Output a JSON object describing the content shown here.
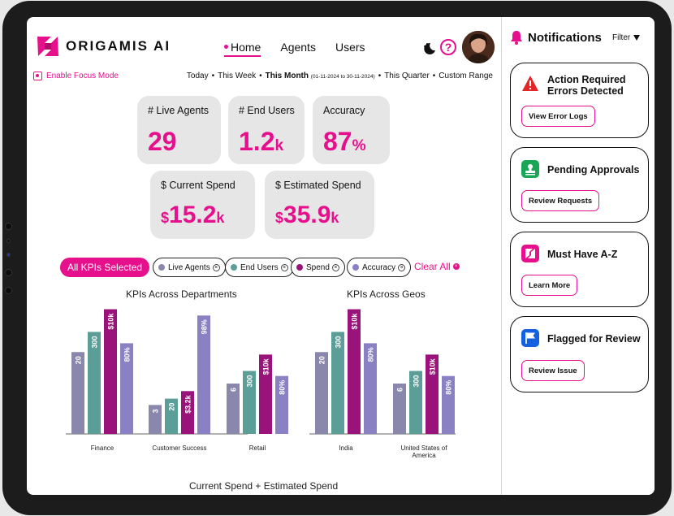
{
  "app": {
    "brand": "ORIGAMIS AI",
    "accent_color": "#e60f8c"
  },
  "nav": {
    "items": [
      {
        "label": "Home",
        "active": true
      },
      {
        "label": "Agents",
        "active": false
      },
      {
        "label": "Users",
        "active": false
      }
    ]
  },
  "header_icons": [
    "theme-toggle-icon",
    "help-icon",
    "avatar"
  ],
  "help_glyph": "?",
  "focus_mode": {
    "label": "Enable Focus Mode"
  },
  "time_ranges": {
    "items": [
      {
        "label": "Today",
        "selected": false
      },
      {
        "label": "This Week",
        "selected": false
      },
      {
        "label": "This Month",
        "selected": true,
        "sub": "(01-11-2024 to 30-11-2024)"
      },
      {
        "label": "This Quarter",
        "selected": false
      },
      {
        "label": "Custom Range",
        "selected": false
      }
    ],
    "separator": "•"
  },
  "kpis": {
    "live_agents": {
      "label": "# Live Agents",
      "value": "29",
      "suffix": ""
    },
    "end_users": {
      "label": "# End Users",
      "value": "1.2",
      "suffix": "k"
    },
    "accuracy": {
      "label": "Accuracy",
      "value": "87",
      "suffix": "%"
    },
    "current_spend": {
      "label": "$ Current Spend",
      "prefix": "$",
      "value": "15.2",
      "suffix": "k"
    },
    "estimated_spend": {
      "label": "$ Estimated Spend",
      "prefix": "$",
      "value": "35.9",
      "suffix": "k"
    }
  },
  "filters": {
    "all_label": "All KPIs Selected",
    "chips": [
      {
        "label": "Live Agents",
        "color": "#8a87ad"
      },
      {
        "label": "End Users",
        "color": "#5a9e97"
      },
      {
        "label": "Spend",
        "color": "#9a137b"
      },
      {
        "label": "Accuracy",
        "color": "#8a80c4"
      }
    ],
    "clear_label": "Clear All",
    "remove_glyph": "×"
  },
  "chart_data": [
    {
      "type": "bar",
      "title": "KPIs Across Departments",
      "categories": [
        "Finance",
        "Customer Success",
        "Retail"
      ],
      "series": [
        {
          "name": "Live Agents",
          "color": "#8a87ad",
          "values": [
            20,
            3,
            6
          ],
          "labels": [
            "20",
            "3",
            "6"
          ]
        },
        {
          "name": "End Users",
          "color": "#5a9e97",
          "values": [
            300,
            20,
            300
          ],
          "labels": [
            "300",
            "20",
            "300"
          ]
        },
        {
          "name": "Spend",
          "color": "#9a137b",
          "values": [
            10,
            3.2,
            10
          ],
          "labels": [
            "$10k",
            "$3.2k",
            "$10k"
          ]
        },
        {
          "name": "Accuracy",
          "color": "#8a80c4",
          "values": [
            80,
            98,
            80
          ],
          "labels": [
            "80%",
            "98%",
            "80%"
          ]
        }
      ],
      "relative_heights": [
        [
          0.65,
          0.23,
          0.4
        ],
        [
          0.81,
          0.28,
          0.5
        ],
        [
          0.99,
          0.34,
          0.63
        ],
        [
          0.72,
          0.94,
          0.46
        ]
      ]
    },
    {
      "type": "bar",
      "title": "KPIs Across Geos",
      "categories": [
        "India",
        "United States of America"
      ],
      "series": [
        {
          "name": "Live Agents",
          "color": "#8a87ad",
          "values": [
            20,
            6
          ],
          "labels": [
            "20",
            "6"
          ]
        },
        {
          "name": "End Users",
          "color": "#5a9e97",
          "values": [
            300,
            300
          ],
          "labels": [
            "300",
            "300"
          ]
        },
        {
          "name": "Spend",
          "color": "#9a137b",
          "values": [
            10,
            10
          ],
          "labels": [
            "$10k",
            "$10k"
          ]
        },
        {
          "name": "Accuracy",
          "color": "#8a80c4",
          "values": [
            80,
            80
          ],
          "labels": [
            "80%",
            "80%"
          ]
        }
      ],
      "relative_heights": [
        [
          0.65,
          0.4
        ],
        [
          0.81,
          0.5
        ],
        [
          0.99,
          0.63
        ],
        [
          0.72,
          0.46
        ]
      ]
    }
  ],
  "bottom_chart": {
    "title": "Current Spend + Estimated Spend"
  },
  "notifications": {
    "title": "Notifications",
    "filter_label": "Filter",
    "cards": [
      {
        "title": "Action Required Errors Detected",
        "button": "View Error Logs",
        "icon": "warning-icon",
        "icon_color": "#e32626"
      },
      {
        "title": "Pending Approvals",
        "button": "Review Requests",
        "icon": "approval-stamp-icon",
        "icon_color": "#1aa657"
      },
      {
        "title": "Must Have A-Z",
        "button": "Learn More",
        "icon": "origami-logo-icon",
        "icon_color": "#e60f8c"
      },
      {
        "title": "Flagged for Review",
        "button": "Review Issue",
        "icon": "flag-icon",
        "icon_color": "#1560e0"
      }
    ]
  }
}
